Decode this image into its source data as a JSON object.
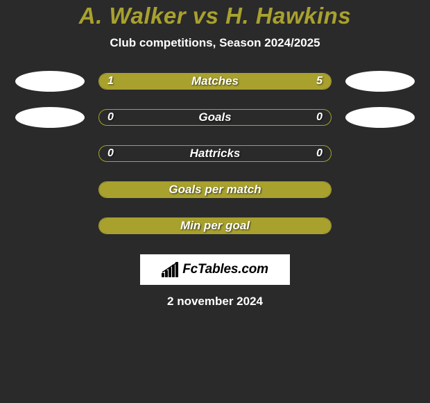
{
  "title": "A. Walker vs H. Hawkins",
  "subtitle": "Club competitions, Season 2024/2025",
  "colors": {
    "accent": "#a8a12e",
    "background": "#2a2a2a",
    "ellipse": "#ffffff",
    "text": "#ffffff"
  },
  "stats": [
    {
      "label": "Matches",
      "left_val": "1",
      "right_val": "5",
      "left_pct": 17,
      "right_pct": 83,
      "show_ellipse": true
    },
    {
      "label": "Goals",
      "left_val": "0",
      "right_val": "0",
      "left_pct": 0,
      "right_pct": 0,
      "show_ellipse": true
    },
    {
      "label": "Hattricks",
      "left_val": "0",
      "right_val": "0",
      "left_pct": 0,
      "right_pct": 0,
      "show_ellipse": false
    },
    {
      "label": "Goals per match",
      "left_val": "",
      "right_val": "",
      "left_pct": 100,
      "right_pct": 0,
      "show_ellipse": false
    },
    {
      "label": "Min per goal",
      "left_val": "",
      "right_val": "",
      "left_pct": 100,
      "right_pct": 0,
      "show_ellipse": false
    }
  ],
  "logo_text": "FcTables.com",
  "date_text": "2 november 2024"
}
